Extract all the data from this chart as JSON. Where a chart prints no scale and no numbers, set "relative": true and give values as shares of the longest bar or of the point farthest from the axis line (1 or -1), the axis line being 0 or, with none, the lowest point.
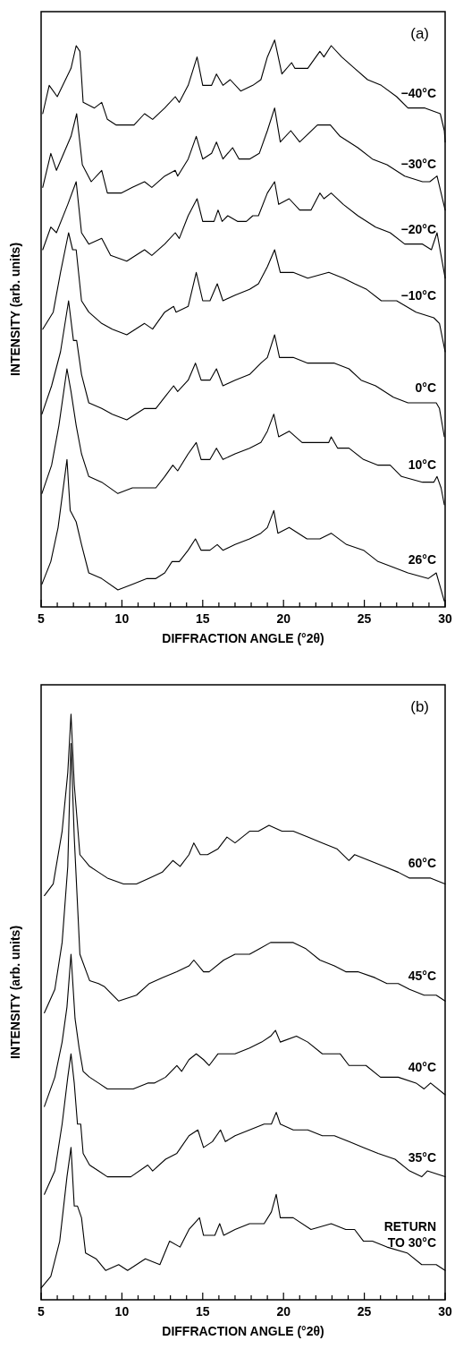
{
  "chart_data": [
    {
      "type": "line",
      "ylabel": "INTENSITY (arb. units)",
      "xlabel": "DIFFRACTION ANGLE (°2θ)",
      "annotations": [
        "(a)"
      ],
      "relative": true,
      "xlim": [
        5,
        30
      ],
      "xticks": [
        5,
        {
          "value": 6,
          "label": null
        },
        {
          "value": 7,
          "label": null
        },
        {
          "value": 8,
          "label": null
        },
        {
          "value": 9,
          "label": null
        },
        10,
        {
          "value": 11,
          "label": null
        },
        {
          "value": 12,
          "label": null
        },
        {
          "value": 13,
          "label": null
        },
        {
          "value": 14,
          "label": null
        },
        15,
        {
          "value": 16,
          "label": null
        },
        {
          "value": 17,
          "label": null
        },
        {
          "value": 18,
          "label": null
        },
        {
          "value": 19,
          "label": null
        },
        20,
        {
          "value": 21,
          "label": null
        },
        {
          "value": 22,
          "label": null
        },
        {
          "value": 23,
          "label": null
        },
        {
          "value": 24,
          "label": null
        },
        25,
        {
          "value": 26,
          "label": null
        },
        {
          "value": 27,
          "label": null
        },
        {
          "value": 28,
          "label": null
        },
        {
          "value": 29,
          "label": null
        },
        30
      ],
      "series": [
        {
          "name": "−40°C",
          "color": "#000000",
          "x": [
            5.1,
            5.5,
            6.0,
            6.85,
            7.17,
            7.4,
            7.6,
            8.3,
            8.75,
            9.1,
            9.65,
            10.75,
            11.4,
            11.9,
            12.65,
            13.3,
            13.55,
            14.1,
            14.65,
            15.0,
            15.55,
            15.85,
            16.25,
            16.7,
            17.35,
            18.1,
            18.6,
            19.0,
            19.45,
            19.9,
            20.5,
            20.7,
            21.5,
            22.25,
            22.5,
            22.95,
            23.6,
            24.4,
            25.2,
            26.05,
            27.0,
            27.7,
            28.75,
            29.7,
            29.95,
            30.0
          ],
          "values": [
            0.87,
            0.92,
            0.9,
            0.95,
            0.99,
            0.98,
            0.89,
            0.88,
            0.89,
            0.86,
            0.85,
            0.85,
            0.87,
            0.86,
            0.88,
            0.9,
            0.89,
            0.92,
            0.97,
            0.92,
            0.92,
            0.94,
            0.92,
            0.93,
            0.91,
            0.92,
            0.93,
            0.97,
            1.0,
            0.94,
            0.96,
            0.95,
            0.95,
            0.98,
            0.97,
            0.99,
            0.97,
            0.95,
            0.93,
            0.92,
            0.9,
            0.88,
            0.88,
            0.87,
            0.84,
            0.82
          ]
        },
        {
          "name": "−30°C",
          "color": "#000000",
          "x": [
            5.1,
            5.6,
            5.95,
            6.85,
            7.2,
            7.55,
            8.1,
            8.75,
            9.1,
            9.95,
            10.65,
            11.4,
            11.85,
            12.65,
            13.3,
            13.45,
            14.1,
            14.6,
            15.0,
            15.55,
            15.85,
            16.25,
            16.85,
            17.25,
            17.9,
            18.5,
            19.0,
            19.45,
            19.8,
            20.45,
            21.0,
            22.1,
            22.9,
            23.5,
            24.6,
            25.5,
            26.4,
            27.5,
            28.6,
            29.05,
            29.5,
            29.75,
            30.0
          ],
          "values": [
            0.74,
            0.8,
            0.77,
            0.83,
            0.87,
            0.78,
            0.75,
            0.77,
            0.73,
            0.73,
            0.74,
            0.75,
            0.74,
            0.76,
            0.77,
            0.76,
            0.79,
            0.83,
            0.79,
            0.8,
            0.82,
            0.79,
            0.81,
            0.79,
            0.79,
            0.8,
            0.84,
            0.88,
            0.82,
            0.84,
            0.82,
            0.85,
            0.85,
            0.83,
            0.81,
            0.79,
            0.78,
            0.76,
            0.75,
            0.75,
            0.76,
            0.73,
            0.7
          ]
        },
        {
          "name": "−20°C",
          "color": "#000000",
          "x": [
            5.1,
            5.6,
            5.95,
            6.65,
            7.17,
            7.5,
            7.95,
            8.75,
            9.3,
            10.3,
            11.4,
            11.85,
            12.65,
            13.3,
            13.55,
            14.1,
            14.65,
            15.0,
            15.7,
            15.95,
            16.2,
            16.55,
            17.15,
            17.7,
            18.1,
            18.45,
            19.0,
            19.45,
            19.7,
            20.35,
            21.0,
            21.7,
            22.25,
            22.5,
            22.95,
            23.7,
            24.6,
            25.7,
            26.6,
            27.5,
            28.6,
            29.15,
            29.5,
            29.75,
            30.0
          ],
          "values": [
            0.63,
            0.67,
            0.66,
            0.71,
            0.75,
            0.66,
            0.64,
            0.65,
            0.62,
            0.61,
            0.63,
            0.62,
            0.64,
            0.66,
            0.65,
            0.69,
            0.72,
            0.68,
            0.68,
            0.7,
            0.68,
            0.69,
            0.68,
            0.68,
            0.69,
            0.69,
            0.73,
            0.75,
            0.71,
            0.72,
            0.7,
            0.7,
            0.73,
            0.72,
            0.73,
            0.71,
            0.69,
            0.67,
            0.66,
            0.64,
            0.64,
            0.63,
            0.66,
            0.62,
            0.58
          ]
        },
        {
          "name": "−10°C",
          "color": "#000000",
          "x": [
            5.1,
            5.75,
            6.2,
            6.7,
            6.95,
            7.17,
            7.5,
            7.95,
            8.75,
            9.4,
            10.3,
            11.4,
            11.9,
            12.65,
            13.2,
            13.35,
            14.1,
            14.6,
            15.0,
            15.45,
            15.9,
            16.25,
            17.0,
            17.9,
            18.45,
            19.0,
            19.45,
            19.8,
            20.6,
            21.5,
            22.8,
            23.7,
            24.4,
            25.15,
            26.05,
            27.0,
            28.2,
            29.3,
            29.65,
            30.0
          ],
          "values": [
            0.49,
            0.52,
            0.59,
            0.66,
            0.63,
            0.63,
            0.54,
            0.52,
            0.5,
            0.49,
            0.48,
            0.5,
            0.49,
            0.52,
            0.53,
            0.52,
            0.53,
            0.59,
            0.54,
            0.54,
            0.57,
            0.54,
            0.55,
            0.56,
            0.57,
            0.6,
            0.63,
            0.59,
            0.59,
            0.58,
            0.59,
            0.58,
            0.57,
            0.56,
            0.54,
            0.54,
            0.52,
            0.51,
            0.5,
            0.45
          ]
        },
        {
          "name": "0°C",
          "color": "#000000",
          "x": [
            5.05,
            5.65,
            6.2,
            6.7,
            7.0,
            7.2,
            7.5,
            7.95,
            8.75,
            9.4,
            10.3,
            11.4,
            12.1,
            12.65,
            13.2,
            13.45,
            14.1,
            14.55,
            14.9,
            15.45,
            15.85,
            16.25,
            17.0,
            17.9,
            18.6,
            19.0,
            19.45,
            19.75,
            20.6,
            21.5,
            22.4,
            23.15,
            24.05,
            24.8,
            25.7,
            26.8,
            27.7,
            28.6,
            29.45,
            29.65,
            29.95
          ],
          "values": [
            0.34,
            0.39,
            0.45,
            0.54,
            0.47,
            0.47,
            0.41,
            0.36,
            0.35,
            0.34,
            0.33,
            0.35,
            0.35,
            0.37,
            0.39,
            0.38,
            0.4,
            0.43,
            0.4,
            0.4,
            0.42,
            0.39,
            0.4,
            0.41,
            0.43,
            0.44,
            0.48,
            0.44,
            0.44,
            0.43,
            0.43,
            0.43,
            0.42,
            0.4,
            0.39,
            0.37,
            0.36,
            0.36,
            0.36,
            0.35,
            0.3
          ]
        },
        {
          "name": "10°C",
          "color": "#000000",
          "x": [
            5.05,
            5.65,
            6.1,
            6.6,
            6.85,
            7.17,
            7.5,
            7.95,
            8.75,
            9.75,
            10.65,
            11.4,
            12.1,
            12.65,
            13.15,
            13.45,
            14.1,
            14.6,
            14.9,
            15.45,
            15.85,
            16.25,
            17.0,
            17.9,
            18.6,
            19.0,
            19.4,
            19.7,
            20.35,
            21.15,
            22.1,
            22.8,
            22.95,
            23.35,
            24.05,
            24.95,
            25.85,
            26.6,
            27.3,
            28.6,
            29.3,
            29.5,
            29.75,
            29.95
          ],
          "values": [
            0.2,
            0.25,
            0.32,
            0.42,
            0.38,
            0.32,
            0.27,
            0.23,
            0.22,
            0.2,
            0.21,
            0.21,
            0.21,
            0.23,
            0.25,
            0.24,
            0.27,
            0.29,
            0.26,
            0.26,
            0.28,
            0.26,
            0.27,
            0.28,
            0.29,
            0.31,
            0.34,
            0.3,
            0.31,
            0.29,
            0.29,
            0.29,
            0.3,
            0.28,
            0.28,
            0.26,
            0.25,
            0.25,
            0.23,
            0.22,
            0.22,
            0.23,
            0.21,
            0.18
          ]
        },
        {
          "name": "26°C",
          "color": "#000000",
          "x": [
            5.05,
            5.6,
            6.05,
            6.6,
            6.8,
            7.17,
            7.5,
            7.95,
            8.75,
            9.75,
            10.65,
            11.55,
            12.1,
            12.65,
            13.1,
            13.55,
            14.1,
            14.55,
            14.9,
            15.45,
            15.9,
            16.25,
            17.0,
            17.9,
            18.6,
            19.0,
            19.4,
            19.65,
            20.35,
            21.45,
            22.25,
            22.95,
            23.9,
            24.95,
            25.85,
            26.8,
            27.7,
            28.95,
            29.45,
            29.65,
            29.95
          ],
          "values": [
            0.04,
            0.08,
            0.14,
            0.26,
            0.17,
            0.15,
            0.11,
            0.06,
            0.05,
            0.03,
            0.04,
            0.05,
            0.05,
            0.06,
            0.08,
            0.08,
            0.1,
            0.12,
            0.1,
            0.1,
            0.11,
            0.1,
            0.11,
            0.12,
            0.13,
            0.14,
            0.17,
            0.13,
            0.14,
            0.12,
            0.12,
            0.13,
            0.11,
            0.1,
            0.08,
            0.07,
            0.06,
            0.05,
            0.06,
            0.04,
            0.01
          ]
        }
      ]
    },
    {
      "type": "line",
      "ylabel": "INTENSITY (arb. units)",
      "xlabel": "DIFFRACTION ANGLE (°2θ)",
      "annotations": [
        "(b)"
      ],
      "relative": true,
      "xlim": [
        5,
        30
      ],
      "xticks": [
        5,
        {
          "value": 6,
          "label": null
        },
        {
          "value": 7,
          "label": null
        },
        {
          "value": 8,
          "label": null
        },
        {
          "value": 9,
          "label": null
        },
        10,
        {
          "value": 11,
          "label": null
        },
        {
          "value": 12,
          "label": null
        },
        {
          "value": 13,
          "label": null
        },
        {
          "value": 14,
          "label": null
        },
        15,
        {
          "value": 16,
          "label": null
        },
        {
          "value": 17,
          "label": null
        },
        {
          "value": 18,
          "label": null
        },
        {
          "value": 19,
          "label": null
        },
        20,
        {
          "value": 21,
          "label": null
        },
        {
          "value": 22,
          "label": null
        },
        {
          "value": 23,
          "label": null
        },
        {
          "value": 24,
          "label": null
        },
        25,
        {
          "value": 26,
          "label": null
        },
        {
          "value": 27,
          "label": null
        },
        {
          "value": 28,
          "label": null
        },
        {
          "value": 29,
          "label": null
        },
        30
      ],
      "series": [
        {
          "name": "60°C",
          "color": "#000000",
          "x": [
            5.2,
            5.75,
            6.3,
            6.65,
            6.85,
            7.05,
            7.4,
            8.0,
            8.55,
            9.1,
            10.1,
            10.9,
            11.7,
            12.5,
            13.15,
            13.6,
            14.15,
            14.45,
            14.85,
            15.3,
            15.95,
            16.5,
            17.0,
            17.9,
            18.45,
            19.1,
            19.9,
            20.6,
            21.5,
            22.4,
            23.3,
            24.05,
            24.4,
            25.3,
            26.2,
            27.1,
            27.8,
            28.55,
            29.1,
            30.0
          ],
          "values": [
            0.69,
            0.71,
            0.8,
            0.9,
            1.0,
            0.88,
            0.76,
            0.74,
            0.73,
            0.72,
            0.71,
            0.71,
            0.72,
            0.73,
            0.75,
            0.74,
            0.76,
            0.78,
            0.76,
            0.76,
            0.77,
            0.79,
            0.78,
            0.8,
            0.8,
            0.81,
            0.8,
            0.8,
            0.79,
            0.78,
            0.77,
            0.75,
            0.76,
            0.75,
            0.74,
            0.73,
            0.72,
            0.72,
            0.72,
            0.71
          ]
        },
        {
          "name": "45°C",
          "color": "#000000",
          "x": [
            5.2,
            5.85,
            6.3,
            6.65,
            6.85,
            7.05,
            7.4,
            8.0,
            8.55,
            8.9,
            9.8,
            10.9,
            11.7,
            12.5,
            13.4,
            14.15,
            14.45,
            15.05,
            15.4,
            16.3,
            17.0,
            17.9,
            18.55,
            19.2,
            19.9,
            20.6,
            21.35,
            22.25,
            23.15,
            23.85,
            24.6,
            25.65,
            26.4,
            27.1,
            27.8,
            28.7,
            29.45,
            30.0
          ],
          "values": [
            0.49,
            0.53,
            0.61,
            0.74,
            0.95,
            0.79,
            0.59,
            0.545,
            0.54,
            0.535,
            0.51,
            0.52,
            0.54,
            0.55,
            0.56,
            0.57,
            0.58,
            0.56,
            0.56,
            0.58,
            0.59,
            0.59,
            0.6,
            0.61,
            0.61,
            0.61,
            0.6,
            0.58,
            0.57,
            0.56,
            0.56,
            0.55,
            0.54,
            0.54,
            0.53,
            0.52,
            0.52,
            0.51
          ]
        },
        {
          "name": "40°C",
          "color": "#000000",
          "x": [
            5.2,
            5.85,
            6.3,
            6.6,
            6.85,
            7.1,
            7.35,
            7.6,
            8.0,
            8.55,
            9.1,
            9.8,
            10.7,
            11.6,
            12.0,
            12.7,
            13.4,
            13.7,
            14.15,
            14.6,
            15.05,
            15.4,
            15.95,
            17.0,
            17.9,
            18.65,
            19.2,
            19.5,
            19.8,
            20.8,
            21.5,
            22.4,
            23.5,
            24.05,
            25.1,
            26.0,
            27.1,
            28.2,
            28.7,
            29.1,
            30.0
          ],
          "values": [
            0.33,
            0.38,
            0.44,
            0.5,
            0.59,
            0.48,
            0.43,
            0.39,
            0.38,
            0.37,
            0.36,
            0.36,
            0.36,
            0.37,
            0.37,
            0.38,
            0.4,
            0.39,
            0.41,
            0.42,
            0.41,
            0.4,
            0.42,
            0.42,
            0.43,
            0.44,
            0.45,
            0.46,
            0.44,
            0.45,
            0.44,
            0.42,
            0.42,
            0.4,
            0.4,
            0.38,
            0.38,
            0.37,
            0.36,
            0.37,
            0.35
          ]
        },
        {
          "name": "35°C",
          "color": "#000000",
          "x": [
            5.2,
            5.85,
            6.3,
            6.65,
            6.85,
            7.05,
            7.25,
            7.45,
            7.6,
            8.0,
            8.55,
            9.1,
            10.0,
            10.55,
            11.6,
            11.9,
            12.7,
            13.4,
            14.15,
            14.7,
            15.05,
            15.6,
            16.1,
            16.4,
            17.0,
            17.9,
            18.8,
            19.25,
            19.55,
            19.8,
            20.6,
            21.5,
            22.4,
            23.15,
            24.05,
            24.95,
            25.85,
            26.9,
            27.8,
            28.55,
            28.9,
            30.0
          ],
          "values": [
            0.18,
            0.22,
            0.3,
            0.38,
            0.42,
            0.37,
            0.3,
            0.3,
            0.25,
            0.23,
            0.22,
            0.21,
            0.21,
            0.21,
            0.23,
            0.22,
            0.24,
            0.25,
            0.28,
            0.29,
            0.26,
            0.27,
            0.29,
            0.27,
            0.28,
            0.29,
            0.3,
            0.3,
            0.32,
            0.3,
            0.29,
            0.29,
            0.28,
            0.28,
            0.27,
            0.26,
            0.25,
            0.24,
            0.22,
            0.21,
            0.22,
            0.21
          ]
        },
        {
          "name": "RETURN TO 30°C",
          "color": "#000000",
          "x": [
            5.0,
            5.6,
            6.15,
            6.6,
            6.85,
            7.05,
            7.25,
            7.5,
            7.75,
            8.4,
            9.0,
            9.8,
            10.35,
            11.45,
            12.35,
            12.95,
            13.6,
            14.15,
            14.8,
            15.05,
            15.75,
            16.05,
            16.3,
            17.0,
            17.9,
            18.8,
            19.25,
            19.55,
            19.8,
            20.6,
            21.7,
            22.95,
            23.85,
            24.4,
            24.95,
            25.5,
            26.4,
            27.65,
            28.55,
            29.45,
            30.0
          ],
          "values": [
            0.02,
            0.04,
            0.1,
            0.21,
            0.26,
            0.16,
            0.16,
            0.14,
            0.08,
            0.07,
            0.05,
            0.06,
            0.05,
            0.07,
            0.06,
            0.1,
            0.09,
            0.12,
            0.14,
            0.11,
            0.11,
            0.13,
            0.11,
            0.12,
            0.13,
            0.13,
            0.15,
            0.18,
            0.14,
            0.14,
            0.12,
            0.13,
            0.12,
            0.12,
            0.1,
            0.1,
            0.09,
            0.08,
            0.06,
            0.06,
            0.05
          ]
        }
      ]
    }
  ]
}
